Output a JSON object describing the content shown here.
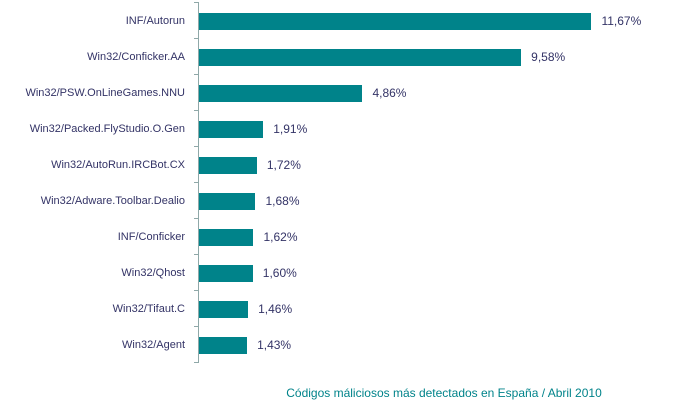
{
  "chart_data": {
    "type": "bar",
    "orientation": "horizontal",
    "title": "Códigos máliciosos más detectados en España / Abril 2010",
    "categories": [
      "INF/Autorun",
      "Win32/Conficker.AA",
      "Win32/PSW.OnLineGames.NNU",
      "Win32/Packed.FlyStudio.O.Gen",
      "Win32/AutoRun.IRCBot.CX",
      "Win32/Adware.Toolbar.Dealio",
      "INF/Conficker",
      "Win32/Qhost",
      "Win32/Tifaut.C",
      "Win32/Agent"
    ],
    "values": [
      11.67,
      9.58,
      4.86,
      1.91,
      1.72,
      1.68,
      1.62,
      1.6,
      1.46,
      1.43
    ],
    "value_labels": [
      "11,67%",
      "9,58%",
      "4,86%",
      "1,91%",
      "1,72%",
      "1,68%",
      "1,62%",
      "1,60%",
      "1,46%",
      "1,43%"
    ],
    "xlabel": "",
    "ylabel": "",
    "xlim": [
      0,
      14.6
    ],
    "grid": false,
    "legend": "none",
    "bar_color": "#00838A",
    "text_color": "#333366",
    "title_color": "#00838A",
    "axis_color": "#8FA8A8"
  }
}
